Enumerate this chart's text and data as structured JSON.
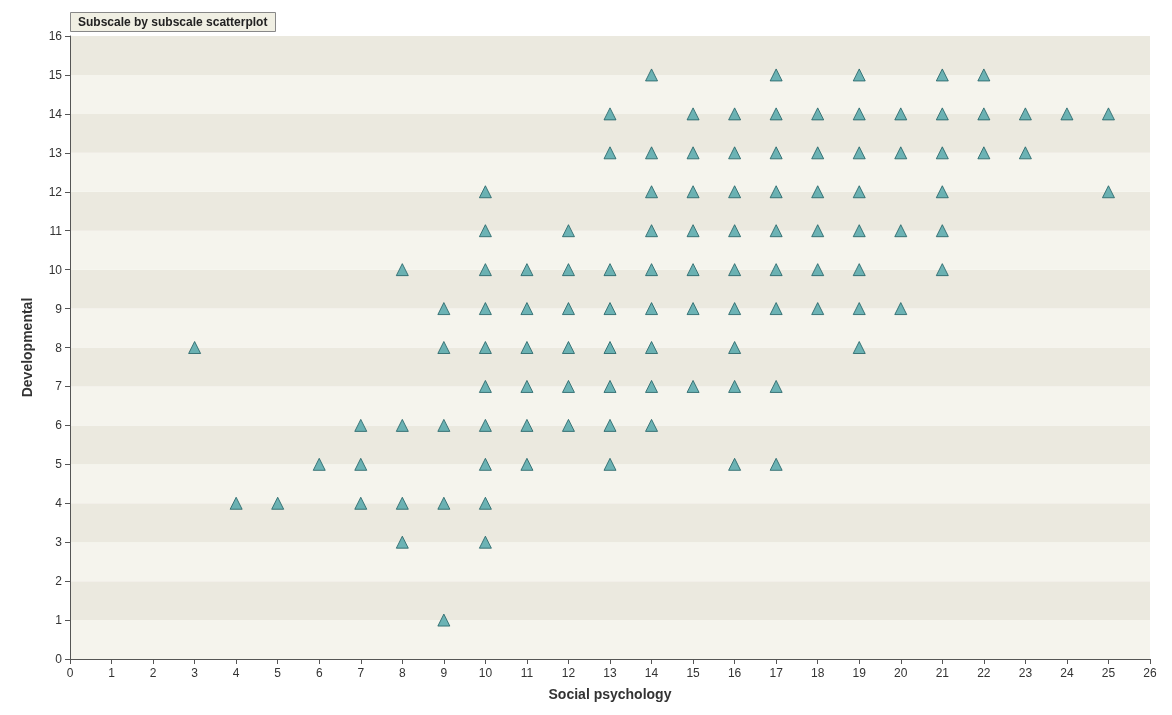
{
  "chart_data": {
    "type": "scatter",
    "title": "Subscale by subscale scatterplot",
    "xlabel": "Social psychology",
    "ylabel": "Developmental",
    "x": [
      14,
      17,
      19,
      21,
      22,
      13,
      15,
      16,
      17,
      18,
      19,
      20,
      21,
      22,
      23,
      24,
      25,
      13,
      14,
      15,
      16,
      17,
      18,
      19,
      20,
      21,
      22,
      23,
      10,
      14,
      15,
      16,
      17,
      18,
      19,
      21,
      25,
      10,
      12,
      14,
      15,
      16,
      17,
      18,
      19,
      20,
      21,
      8,
      10,
      11,
      12,
      13,
      14,
      15,
      16,
      17,
      18,
      19,
      21,
      9,
      10,
      11,
      12,
      13,
      14,
      15,
      16,
      17,
      18,
      19,
      20,
      3,
      9,
      10,
      11,
      12,
      13,
      14,
      16,
      19,
      10,
      11,
      12,
      13,
      14,
      15,
      16,
      17,
      7,
      8,
      9,
      10,
      11,
      12,
      13,
      14,
      6,
      7,
      10,
      11,
      13,
      16,
      17,
      4,
      5,
      7,
      8,
      9,
      10,
      8,
      10,
      9
    ],
    "values": [
      15,
      15,
      15,
      15,
      15,
      14,
      14,
      14,
      14,
      14,
      14,
      14,
      14,
      14,
      14,
      14,
      14,
      13,
      13,
      13,
      13,
      13,
      13,
      13,
      13,
      13,
      13,
      13,
      12,
      12,
      12,
      12,
      12,
      12,
      12,
      12,
      12,
      11,
      11,
      11,
      11,
      11,
      11,
      11,
      11,
      11,
      11,
      10,
      10,
      10,
      10,
      10,
      10,
      10,
      10,
      10,
      10,
      10,
      10,
      9,
      9,
      9,
      9,
      9,
      9,
      9,
      9,
      9,
      9,
      9,
      9,
      8,
      8,
      8,
      8,
      8,
      8,
      8,
      8,
      8,
      7,
      7,
      7,
      7,
      7,
      7,
      7,
      7,
      6,
      6,
      6,
      6,
      6,
      6,
      6,
      6,
      5,
      5,
      5,
      5,
      5,
      5,
      5,
      4,
      4,
      4,
      4,
      4,
      4,
      3,
      3,
      1
    ],
    "color": "#4aa3a6",
    "marker": "triangle",
    "xlim": [
      0,
      26
    ],
    "xticks": [
      0,
      1,
      2,
      3,
      4,
      5,
      6,
      7,
      8,
      9,
      10,
      11,
      12,
      13,
      14,
      15,
      16,
      17,
      18,
      19,
      20,
      21,
      22,
      23,
      24,
      25,
      26
    ],
    "ylim": [
      0,
      16
    ],
    "yticks": [
      0,
      1,
      2,
      3,
      4,
      5,
      6,
      7,
      8,
      9,
      10,
      11,
      12,
      13,
      14,
      15,
      16
    ]
  }
}
